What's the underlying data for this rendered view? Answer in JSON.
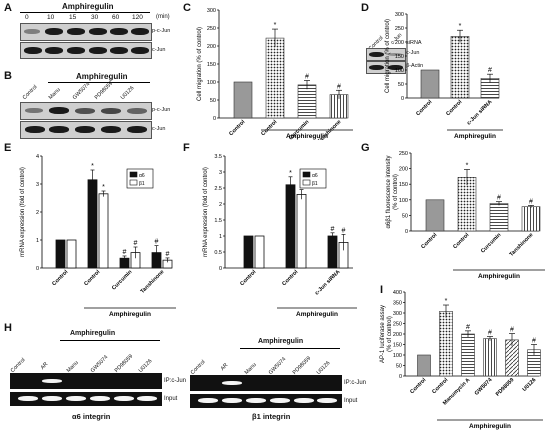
{
  "panel_labels": {
    "A": "A",
    "B": "B",
    "C": "C",
    "D": "D",
    "E": "E",
    "F": "F",
    "G": "G",
    "H": "H",
    "I": "I"
  },
  "panel_a": {
    "title": "Amphiregulin",
    "times": [
      "0",
      "10",
      "15",
      "30",
      "60",
      "120"
    ],
    "unit": "(min)",
    "rows": [
      "p-c-Jun",
      "c-Jun"
    ]
  },
  "panel_b": {
    "title": "Amphiregulin",
    "lanes": [
      "Control",
      "Manu",
      "GW5074",
      "PD98059",
      "U0126"
    ],
    "rows": [
      "p-c-Jun",
      "c-Jun"
    ]
  },
  "panel_d_blot": {
    "lanes": [
      "Control",
      "c-Jun"
    ],
    "siRNA_label": "siRNA",
    "rows": [
      "c-Jun",
      "β-Actin"
    ]
  },
  "panel_h": {
    "left": {
      "group": "Amphiregulin",
      "lanes": [
        "Control",
        "AR",
        "Manu",
        "GW5074",
        "PD98059",
        "U0126"
      ],
      "rows": [
        "IP:c-Jun",
        "Input"
      ],
      "caption": "α6 integrin"
    },
    "right": {
      "group": "Amphiregulin",
      "lanes": [
        "Control",
        "AR",
        "Manu",
        "GW5074",
        "PD98059",
        "U0126"
      ],
      "rows": [
        "IP:c-Jun",
        "Input"
      ],
      "caption": "β1 integrin"
    }
  },
  "chart_data": [
    {
      "id": "C",
      "type": "bar",
      "ylabel": "Cell migration (% of control)",
      "ylim": [
        0,
        300
      ],
      "yticks": [
        0,
        50,
        100,
        150,
        200,
        250,
        300
      ],
      "categories": [
        "Control",
        "Control",
        "Curcumin",
        "Tanshinone"
      ],
      "values": [
        100,
        222,
        92,
        65
      ],
      "errors": [
        0,
        25,
        12,
        12
      ],
      "markers": [
        "",
        "*",
        "#",
        "#"
      ],
      "group_label": "Amphiregulin"
    },
    {
      "id": "D",
      "type": "bar",
      "ylabel": "Cell migration (% of control)",
      "ylim": [
        0,
        300
      ],
      "yticks": [
        0,
        50,
        100,
        150,
        200,
        250,
        300
      ],
      "categories": [
        "Control",
        "Control",
        "c-Jun siRNA"
      ],
      "values": [
        100,
        220,
        70
      ],
      "errors": [
        0,
        22,
        15
      ],
      "markers": [
        "",
        "*",
        "#"
      ],
      "group_label": "Amphiregulin"
    },
    {
      "id": "E",
      "type": "bar",
      "ylabel": "mRNA expression (fold of control)",
      "ylim": [
        0,
        4
      ],
      "yticks": [
        0,
        1,
        2,
        3,
        4
      ],
      "categories": [
        "Control",
        "Control",
        "Curcumin",
        "Tanshinone"
      ],
      "series": [
        {
          "name": "α6",
          "values": [
            1.0,
            3.15,
            0.35,
            0.55
          ],
          "errors": [
            0,
            0.35,
            0.08,
            0.25
          ]
        },
        {
          "name": "β1",
          "values": [
            1.0,
            2.65,
            0.55,
            0.28
          ],
          "errors": [
            0,
            0.1,
            0.2,
            0.08
          ]
        }
      ],
      "markers": [
        [
          "",
          ""
        ],
        [
          "*",
          "*"
        ],
        [
          "#",
          "#"
        ],
        [
          "#",
          "#"
        ]
      ],
      "group_label": "Amphiregulin"
    },
    {
      "id": "F",
      "type": "bar",
      "ylabel": "mRNA expression (fold of control)",
      "ylim": [
        0,
        3.5
      ],
      "yticks": [
        0,
        0.5,
        1,
        1.5,
        2,
        2.5,
        3,
        3.5
      ],
      "categories": [
        "Control",
        "Control",
        "c-Jun siRNA"
      ],
      "series": [
        {
          "name": "α6",
          "values": [
            1.0,
            2.6,
            1.0
          ],
          "errors": [
            0,
            0.25,
            0.1
          ]
        },
        {
          "name": "β1",
          "values": [
            1.0,
            2.3,
            0.8
          ],
          "errors": [
            0,
            0.15,
            0.25
          ]
        }
      ],
      "markers": [
        [
          "",
          ""
        ],
        [
          "*",
          "*"
        ],
        [
          "#",
          "#"
        ]
      ],
      "group_label": "Amphiregulin"
    },
    {
      "id": "G",
      "type": "bar",
      "ylabel": "α6β1 fluorescence intensity (% of control)",
      "ylim": [
        0,
        250
      ],
      "yticks": [
        0,
        50,
        100,
        150,
        200,
        250
      ],
      "categories": [
        "Control",
        "Control",
        "Curcumin",
        "Tanshinone"
      ],
      "values": [
        100,
        172,
        88,
        78
      ],
      "errors": [
        0,
        25,
        6,
        4
      ],
      "markers": [
        "",
        "*",
        "#",
        "#"
      ],
      "group_label": "Amphiregulin"
    },
    {
      "id": "I",
      "type": "bar",
      "ylabel": "AP-1 luciferase assay (% of control)",
      "ylim": [
        0,
        400
      ],
      "yticks": [
        0,
        50,
        100,
        150,
        200,
        250,
        300,
        350,
        400
      ],
      "categories": [
        "Control",
        "Control",
        "Manumycin A",
        "GW5074",
        "PD98059",
        "U0126"
      ],
      "values": [
        100,
        308,
        200,
        178,
        172,
        125
      ],
      "errors": [
        0,
        30,
        15,
        10,
        30,
        25
      ],
      "markers": [
        "",
        "*",
        "#",
        "#",
        "#",
        "#"
      ],
      "group_label": "Amphiregulin"
    }
  ]
}
